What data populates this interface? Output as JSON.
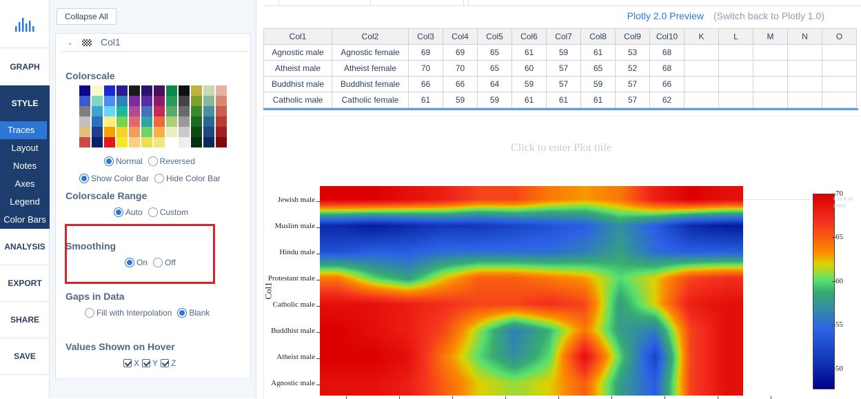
{
  "nav": {
    "logo_icon": "plotly-bars-icon",
    "graph": "GRAPH",
    "style": "STYLE",
    "style_items": [
      "Traces",
      "Layout",
      "Notes",
      "Axes",
      "Legend",
      "Color Bars"
    ],
    "analysis": "ANALYSIS",
    "export": "EXPORT",
    "share": "SHARE",
    "save": "SAVE"
  },
  "panel": {
    "collapse_all": "Collapse All",
    "trace_name": "Col1",
    "colorscale": {
      "title": "Colorscale",
      "normal": "Normal",
      "reversed": "Reversed",
      "show_colorbar": "Show Color Bar",
      "hide_colorbar": "Hide Color Bar",
      "swatch_columns": [
        [
          "#0d0887",
          "#3b5bd1",
          "#7f7f7f",
          "#c0c0c0",
          "#e0c07a",
          "#cc4b4b"
        ],
        [
          "#fafac8",
          "#7fd7c4",
          "#3aa6d0",
          "#2a72c0",
          "#1f3d8c",
          "#0b1e6a"
        ],
        [
          "#1c2bd0",
          "#4a8cf0",
          "#62d8ff",
          "#faf07a",
          "#f6a400",
          "#e31a1c"
        ],
        [
          "#2b1d8f",
          "#2b83ba",
          "#1cb9a0",
          "#74d34f",
          "#f6d324",
          "#f6e82c"
        ],
        [
          "#1a1a1a",
          "#7b2aa0",
          "#b04a94",
          "#e06a6e",
          "#f49b62",
          "#fbd080"
        ],
        [
          "#2a1470",
          "#5b2ba6",
          "#4a6fbf",
          "#2ea6a6",
          "#6bd46b",
          "#f0e050"
        ],
        [
          "#4a0f5a",
          "#8b1c6b",
          "#c72a5a",
          "#ef6a3a",
          "#f7b046",
          "#f0e87a"
        ],
        [
          "#0a8a4a",
          "#2a9a5a",
          "#5aaa6a",
          "#aad07a",
          "#e8f0c0",
          "#ffffff"
        ],
        [
          "#111111",
          "#444444",
          "#6a6a6a",
          "#9a9a9a",
          "#cacaca",
          "#eeeeee"
        ],
        [
          "#c0b040",
          "#7aa030",
          "#3a8a2a",
          "#1c6a20",
          "#0d4a14",
          "#063010"
        ],
        [
          "#c8d8b0",
          "#88b8a0",
          "#4a90a0",
          "#2a6890",
          "#1a4a80",
          "#0d2a60"
        ],
        [
          "#e8b0a0",
          "#d88870",
          "#c86050",
          "#b83c34",
          "#a02020",
          "#800a0a"
        ]
      ]
    },
    "range": {
      "title": "Colorscale Range",
      "auto": "Auto",
      "custom": "Custom"
    },
    "smoothing": {
      "title": "Smoothing",
      "on": "On",
      "off": "Off"
    },
    "gaps": {
      "title": "Gaps in Data",
      "interp": "Fill with Interpolation",
      "blank": "Blank"
    },
    "hover": {
      "title": "Values Shown on Hover",
      "x": "X",
      "y": "Y",
      "z": "Z"
    }
  },
  "topbar": {
    "preview": "Plotly 2.0 Preview",
    "switch": "(Switch back to Plotly 1.0)"
  },
  "grid": {
    "columns": [
      "Col1",
      "Col2",
      "Col3",
      "Col4",
      "Col5",
      "Col6",
      "Col7",
      "Col8",
      "Col9",
      "Col10",
      "K",
      "L",
      "M",
      "N",
      "O"
    ],
    "rows": [
      [
        "Agnostic male",
        "Agnostic female",
        "69",
        "69",
        "65",
        "61",
        "59",
        "61",
        "53",
        "68",
        "",
        "",
        "",
        "",
        ""
      ],
      [
        "Atheist male",
        "Atheist female",
        "70",
        "70",
        "65",
        "60",
        "57",
        "65",
        "52",
        "68",
        "",
        "",
        "",
        "",
        ""
      ],
      [
        "Buddhist male",
        "Buddhist female",
        "66",
        "66",
        "64",
        "59",
        "57",
        "59",
        "57",
        "66",
        "",
        "",
        "",
        "",
        ""
      ],
      [
        "Catholic male",
        "Catholic female",
        "61",
        "59",
        "59",
        "61",
        "61",
        "61",
        "57",
        "62",
        "",
        "",
        "",
        "",
        ""
      ]
    ]
  },
  "chart_data": {
    "type": "heatmap",
    "title": "Click to enter Plot title",
    "ylabel": "Col1",
    "ytick_labels": [
      "Jewish male",
      "Muslim male",
      "Hindu male",
      "Protestant male",
      "Catholic male",
      "Buddhist male",
      "Atheist male",
      "Agnostic male"
    ],
    "colorbar": {
      "ticks": [
        70,
        65,
        60,
        55,
        50
      ],
      "min": 47.6,
      "max": 70,
      "title_hint": "Click to enter"
    },
    "colorscale": [
      [
        0,
        "#00008f"
      ],
      [
        0.12,
        "#0d2fae"
      ],
      [
        0.3,
        "#2c62e6"
      ],
      [
        0.5,
        "#38ac71"
      ],
      [
        0.56,
        "#5ae16e"
      ],
      [
        0.64,
        "#dcd200"
      ],
      [
        0.7,
        "#fb8c00"
      ],
      [
        0.85,
        "#f5341f"
      ],
      [
        1,
        "#dc0000"
      ]
    ],
    "smoothing": "on",
    "z": [
      [
        70,
        70,
        69,
        68,
        66,
        66,
        64,
        63,
        64,
        68,
        70,
        69
      ],
      [
        50,
        49,
        50,
        51,
        51,
        52,
        53,
        54,
        57,
        54,
        50,
        49
      ],
      [
        53,
        54,
        54,
        55,
        55,
        55,
        55,
        56,
        58,
        55,
        54,
        54
      ],
      [
        64,
        60,
        58,
        62,
        65,
        65,
        64,
        63,
        60,
        62,
        66,
        67
      ],
      [
        69,
        69,
        68,
        67,
        66,
        66,
        67,
        66,
        58,
        62,
        68,
        69
      ],
      [
        70,
        69,
        68,
        66,
        61,
        56,
        59,
        64,
        58,
        56,
        66,
        69
      ],
      [
        70,
        70,
        69,
        64,
        60,
        57,
        60,
        69,
        60,
        52,
        66,
        69
      ],
      [
        69,
        69,
        68,
        65,
        62,
        61,
        62,
        65,
        58,
        54,
        66,
        69
      ]
    ]
  }
}
